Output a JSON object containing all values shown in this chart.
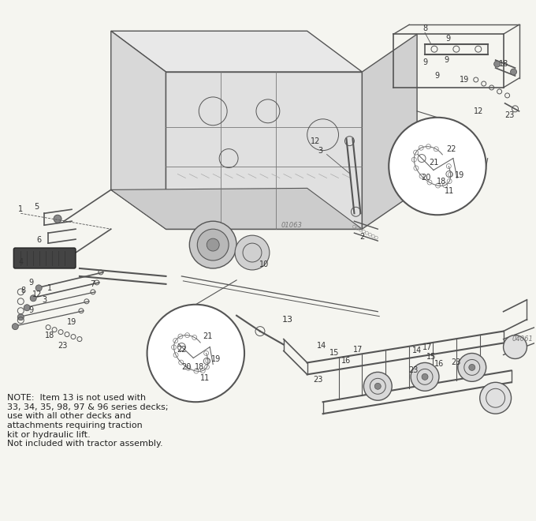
{
  "background_color": "#f5f5f0",
  "note_text": "NOTE:  Item 13 is not used with\n33, 34, 35, 98, 97 & 96 series decks;\nuse with all other decks and\nattachments requiring traction\nkit or hydraulic lift.\nNot included with tractor assembly.",
  "edge_color": "#555555",
  "lw": 0.7,
  "figsize": [
    6.8,
    6.6
  ],
  "dpi": 100
}
